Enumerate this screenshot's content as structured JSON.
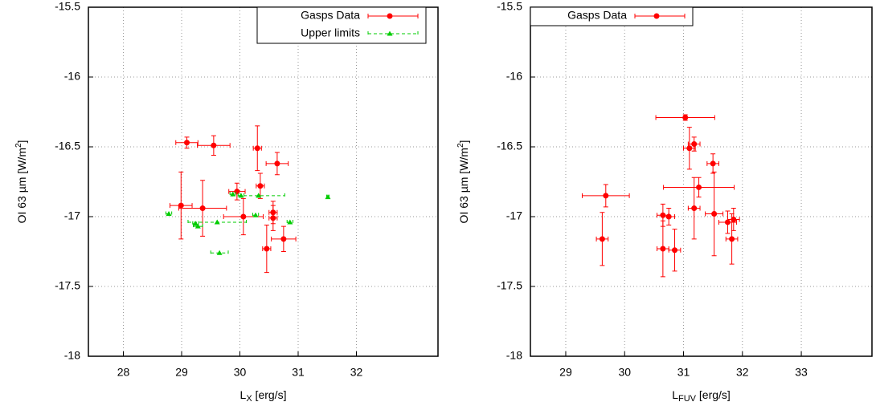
{
  "chart_data": [
    {
      "type": "scatter",
      "xlim": [
        27.4,
        33.4
      ],
      "ylim": [
        -18,
        -15.5
      ],
      "xticks": [
        28,
        29,
        30,
        31,
        32
      ],
      "yticks": [
        -15.5,
        -16,
        -16.5,
        -17,
        -17.5,
        -18
      ],
      "grid": true,
      "legend": "top-right",
      "x_label": [
        "L",
        "X",
        " [erg/s]"
      ],
      "y_label": [
        "OI 63 µm [W/m",
        "2",
        "]"
      ],
      "series": [
        {
          "name": "Gasps Data",
          "color": "#ff0000",
          "marker": "circle",
          "line": "solid",
          "x": [
            29.09,
            29.55,
            30.3,
            30.64,
            30.35,
            29.95,
            28.99,
            29.36,
            30.06,
            30.57,
            30.57,
            30.46,
            30.75
          ],
          "values": [
            -16.47,
            -16.49,
            -16.51,
            -16.62,
            -16.78,
            -16.82,
            -16.92,
            -16.94,
            -17.0,
            -16.97,
            -17.01,
            -17.23,
            -17.16
          ],
          "xerr": [
            0.19,
            0.28,
            0.07,
            0.19,
            0.07,
            0.14,
            0.19,
            0.41,
            0.34,
            0.07,
            0.07,
            0.07,
            0.21
          ],
          "yerr": [
            0.04,
            0.07,
            0.16,
            0.08,
            0.09,
            0.06,
            0.24,
            0.2,
            0.13,
            0.08,
            0.09,
            0.17,
            0.09
          ]
        },
        {
          "name": "Upper limits",
          "color": "#00cc00",
          "marker": "triangle",
          "line": "dashed",
          "x": [
            28.78,
            29.24,
            29.28,
            29.65,
            29.88,
            30.02,
            30.27,
            30.32,
            30.86,
            31.51,
            29.61
          ],
          "values": [
            -16.98,
            -17.05,
            -17.07,
            -17.26,
            -16.84,
            -16.85,
            -16.99,
            -16.85,
            -17.04,
            -16.86,
            -17.04
          ],
          "xerr": [
            0.05,
            0.05,
            0.08,
            0.15,
            0.05,
            0.05,
            0.05,
            0.45,
            0.05,
            0.02,
            0.5
          ]
        }
      ]
    },
    {
      "type": "scatter",
      "xlim": [
        28.4,
        34.2
      ],
      "ylim": [
        -18,
        -15.5
      ],
      "xticks": [
        29,
        30,
        31,
        32,
        33
      ],
      "yticks": [
        -15.5,
        -16,
        -16.5,
        -17,
        -17.5,
        -18
      ],
      "grid": true,
      "legend": "top-left",
      "x_label": [
        "L",
        "FUV",
        " [erg/s]"
      ],
      "y_label": [
        "OI 63 µm [W/m",
        "2",
        "]"
      ],
      "series": [
        {
          "name": "Gasps Data",
          "color": "#ff0000",
          "marker": "circle",
          "line": "solid",
          "x": [
            29.68,
            29.62,
            31.03,
            31.1,
            31.18,
            31.26,
            31.5,
            30.65,
            30.75,
            31.18,
            31.52,
            31.75,
            31.85,
            30.65,
            30.85,
            31.82
          ],
          "values": [
            -16.85,
            -17.16,
            -16.29,
            -16.51,
            -16.48,
            -16.79,
            -16.62,
            -16.99,
            -17.0,
            -16.94,
            -16.98,
            -17.04,
            -17.02,
            -17.23,
            -17.24,
            -17.16
          ],
          "xerr": [
            0.4,
            0.1,
            0.5,
            0.1,
            0.1,
            0.6,
            0.1,
            0.1,
            0.1,
            0.1,
            0.15,
            0.15,
            0.1,
            0.1,
            0.1,
            0.1
          ],
          "yerr": [
            0.08,
            0.19,
            0.02,
            0.15,
            0.05,
            0.07,
            0.07,
            0.08,
            0.06,
            0.22,
            0.3,
            0.08,
            0.08,
            0.2,
            0.15,
            0.18
          ]
        }
      ]
    }
  ]
}
